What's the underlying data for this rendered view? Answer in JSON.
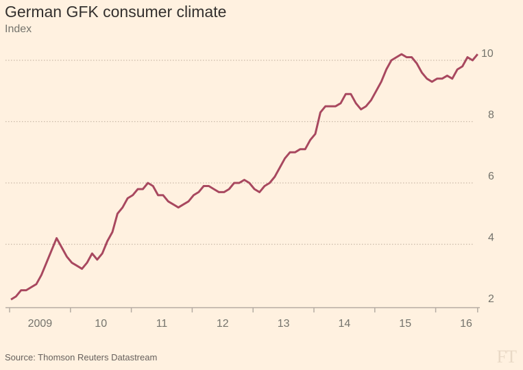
{
  "chart_data": {
    "type": "line",
    "title": "German GFK consumer climate",
    "subtitle": "Index",
    "source": "Source: Thomson Reuters Datastream",
    "logo": "FT",
    "ylim": [
      2,
      10
    ],
    "yticks": [
      2,
      4,
      6,
      8,
      10
    ],
    "y_axis_side": "right",
    "grid": "horizontal dotted",
    "xtick_labels": [
      "2009",
      "10",
      "11",
      "12",
      "13",
      "14",
      "15",
      "16"
    ],
    "x_start": "2009-01",
    "x_frequency": "monthly",
    "line_color": "#a8485f",
    "background_color": "#fff1e0",
    "values": [
      2.2,
      2.3,
      2.5,
      2.5,
      2.6,
      2.7,
      3.0,
      3.4,
      3.8,
      4.2,
      3.9,
      3.6,
      3.4,
      3.3,
      3.2,
      3.4,
      3.7,
      3.5,
      3.7,
      4.1,
      4.4,
      5.0,
      5.2,
      5.5,
      5.6,
      5.8,
      5.8,
      6.0,
      5.9,
      5.6,
      5.6,
      5.4,
      5.3,
      5.2,
      5.3,
      5.4,
      5.6,
      5.7,
      5.9,
      5.9,
      5.8,
      5.7,
      5.7,
      5.8,
      6.0,
      6.0,
      6.1,
      6.0,
      5.8,
      5.7,
      5.9,
      6.0,
      6.2,
      6.5,
      6.8,
      7.0,
      7.0,
      7.1,
      7.1,
      7.4,
      7.6,
      8.3,
      8.5,
      8.5,
      8.5,
      8.6,
      8.9,
      8.9,
      8.6,
      8.4,
      8.5,
      8.7,
      9.0,
      9.3,
      9.7,
      10.0,
      10.1,
      10.2,
      10.1,
      10.1,
      9.9,
      9.6,
      9.4,
      9.3,
      9.4,
      9.4,
      9.5,
      9.4,
      9.7,
      9.8,
      10.1,
      10.0,
      10.2
    ]
  }
}
